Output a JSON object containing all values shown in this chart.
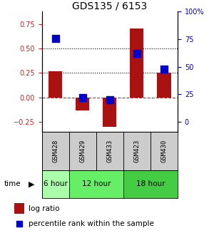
{
  "title": "GDS135 / 6153",
  "samples": [
    "GSM428",
    "GSM429",
    "GSM433",
    "GSM423",
    "GSM430"
  ],
  "time_groups": [
    {
      "label": "6 hour",
      "cols": [
        0
      ],
      "color": "#aaffaa"
    },
    {
      "label": "12 hour",
      "cols": [
        1,
        2
      ],
      "color": "#66ee66"
    },
    {
      "label": "18 hour",
      "cols": [
        3,
        4
      ],
      "color": "#44cc44"
    }
  ],
  "log_ratio": [
    0.27,
    -0.13,
    -0.3,
    0.7,
    0.25
  ],
  "percentile_rank_pct": [
    76,
    22,
    20,
    62,
    48
  ],
  "bar_color": "#aa1111",
  "dot_color": "#0000cc",
  "ylim_left": [
    -0.35,
    0.875
  ],
  "ylim_right": [
    -8.75,
    100
  ],
  "yticks_left": [
    -0.25,
    0.0,
    0.25,
    0.5,
    0.75
  ],
  "yticks_right": [
    0,
    25,
    50,
    75,
    100
  ],
  "hlines_dotted": [
    0.25,
    0.5
  ],
  "hline_dashed_color": "#cc2222",
  "bar_width": 0.5,
  "dot_size": 45,
  "left_tick_color": "#cc2222",
  "right_tick_color": "#0000cc",
  "sample_box_color": "#cccccc",
  "legend_log_ratio": "log ratio",
  "legend_percentile": "percentile rank within the sample",
  "bg_color": "#ffffff"
}
